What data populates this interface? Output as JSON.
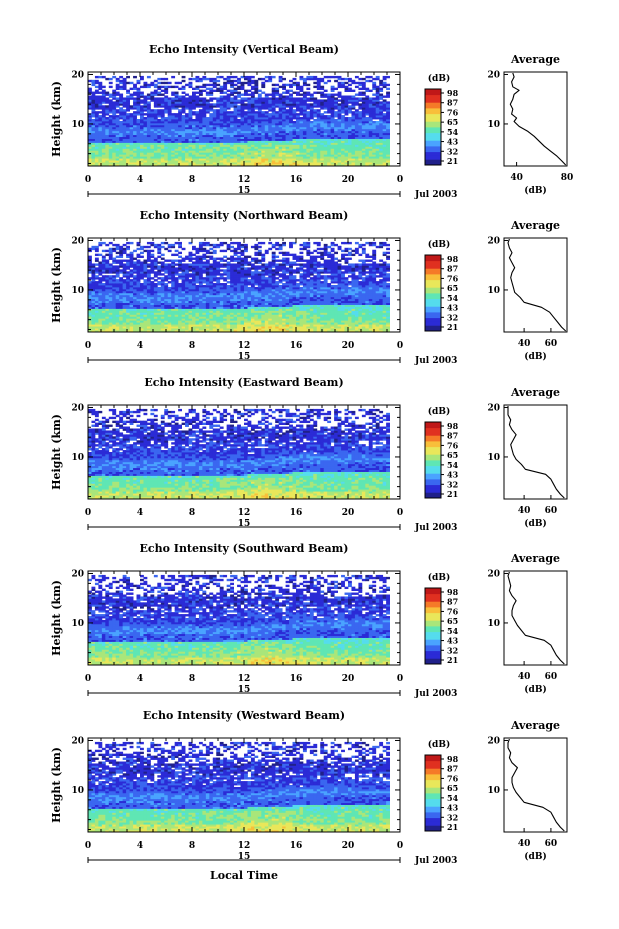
{
  "chart_data": [
    {
      "type": "heatmap",
      "title": "Echo Intensity (Vertical Beam)",
      "ylabel": "Height (km)",
      "x_ticks": [
        "0",
        "4",
        "8",
        "12",
        "16",
        "20",
        "0"
      ],
      "y_ticks": [
        "20",
        "10"
      ],
      "xlim": [
        0,
        24
      ],
      "ylim": [
        1.5,
        20.5
      ],
      "date_marker": "15",
      "date_label": "Jul 2003",
      "colorbar": {
        "label": "(dB)",
        "ticks": [
          "98",
          "87",
          "76",
          "65",
          "54",
          "43",
          "32",
          "21"
        ],
        "range": [
          21,
          98
        ]
      },
      "average": {
        "title": "Average",
        "xlabel": "(dB)",
        "x_ticks": [
          "40",
          "80"
        ],
        "xlim": [
          30,
          80
        ],
        "y_ticks": [
          "20",
          "10"
        ],
        "profile": [
          [
            1.7,
            79
          ],
          [
            2.5,
            76
          ],
          [
            3.5,
            72
          ],
          [
            4.5,
            67
          ],
          [
            5.5,
            62
          ],
          [
            6.5,
            58
          ],
          [
            7.5,
            54
          ],
          [
            8.5,
            49
          ],
          [
            9.5,
            42
          ],
          [
            10.5,
            38
          ],
          [
            11.2,
            40
          ],
          [
            12.0,
            36
          ],
          [
            13.0,
            37
          ],
          [
            14.0,
            35
          ],
          [
            15.0,
            37
          ],
          [
            16.0,
            38
          ],
          [
            16.8,
            42
          ],
          [
            17.5,
            37
          ],
          [
            18.5,
            36
          ],
          [
            19.5,
            38
          ],
          [
            20.3,
            37
          ]
        ]
      }
    },
    {
      "type": "heatmap",
      "title": "Echo Intensity (Northward Beam)",
      "ylabel": "Height (km)",
      "x_ticks": [
        "0",
        "4",
        "8",
        "12",
        "16",
        "20",
        "0"
      ],
      "y_ticks": [
        "20",
        "10"
      ],
      "xlim": [
        0,
        24
      ],
      "ylim": [
        1.5,
        20.5
      ],
      "date_marker": "15",
      "date_label": "Jul 2003",
      "colorbar": {
        "label": "(dB)",
        "ticks": [
          "98",
          "87",
          "76",
          "65",
          "54",
          "43",
          "32",
          "21"
        ],
        "range": [
          21,
          98
        ]
      },
      "average": {
        "title": "Average",
        "xlabel": "(dB)",
        "x_ticks": [
          "40",
          "60"
        ],
        "xlim": [
          25,
          72
        ],
        "y_ticks": [
          "20",
          "10"
        ],
        "profile": [
          [
            1.7,
            71
          ],
          [
            2.5,
            68
          ],
          [
            3.5,
            65
          ],
          [
            4.5,
            62
          ],
          [
            5.5,
            59
          ],
          [
            6.5,
            53
          ],
          [
            7.5,
            40
          ],
          [
            8.5,
            37
          ],
          [
            9.5,
            33
          ],
          [
            10.5,
            32
          ],
          [
            11.5,
            31
          ],
          [
            12.5,
            30
          ],
          [
            13.5,
            31
          ],
          [
            14.5,
            33
          ],
          [
            15.5,
            31
          ],
          [
            16.5,
            29
          ],
          [
            17.5,
            31
          ],
          [
            18.5,
            29
          ],
          [
            19.5,
            28
          ],
          [
            20.3,
            29
          ]
        ]
      }
    },
    {
      "type": "heatmap",
      "title": "Echo Intensity (Eastward Beam)",
      "ylabel": "Height (km)",
      "x_ticks": [
        "0",
        "4",
        "8",
        "12",
        "16",
        "20",
        "0"
      ],
      "y_ticks": [
        "20",
        "10"
      ],
      "xlim": [
        0,
        24
      ],
      "ylim": [
        1.5,
        20.5
      ],
      "date_marker": "15",
      "date_label": "Jul 2003",
      "colorbar": {
        "label": "(dB)",
        "ticks": [
          "98",
          "87",
          "76",
          "65",
          "54",
          "43",
          "32",
          "21"
        ],
        "range": [
          21,
          98
        ]
      },
      "average": {
        "title": "Average",
        "xlabel": "(dB)",
        "x_ticks": [
          "40",
          "60"
        ],
        "xlim": [
          25,
          72
        ],
        "y_ticks": [
          "20",
          "10"
        ],
        "profile": [
          [
            1.7,
            70
          ],
          [
            2.5,
            67
          ],
          [
            3.5,
            64
          ],
          [
            4.5,
            62
          ],
          [
            5.5,
            60
          ],
          [
            6.5,
            56
          ],
          [
            7.5,
            41
          ],
          [
            8.5,
            38
          ],
          [
            9.5,
            34
          ],
          [
            10.5,
            32
          ],
          [
            11.5,
            31
          ],
          [
            12.5,
            30
          ],
          [
            13.5,
            32
          ],
          [
            14.5,
            34
          ],
          [
            15.5,
            31
          ],
          [
            16.5,
            29
          ],
          [
            17.5,
            30
          ],
          [
            18.5,
            28
          ],
          [
            19.5,
            28
          ],
          [
            20.3,
            28
          ]
        ]
      }
    },
    {
      "type": "heatmap",
      "title": "Echo Intensity (Southward Beam)",
      "ylabel": "Height (km)",
      "x_ticks": [
        "0",
        "4",
        "8",
        "12",
        "16",
        "20",
        "0"
      ],
      "y_ticks": [
        "20",
        "10"
      ],
      "xlim": [
        0,
        24
      ],
      "ylim": [
        1.5,
        20.5
      ],
      "date_marker": "15",
      "date_label": "Jul 2003",
      "colorbar": {
        "label": "(dB)",
        "ticks": [
          "98",
          "87",
          "76",
          "65",
          "54",
          "43",
          "32",
          "21"
        ],
        "range": [
          21,
          98
        ]
      },
      "average": {
        "title": "Average",
        "xlabel": "(dB)",
        "x_ticks": [
          "40",
          "60"
        ],
        "xlim": [
          25,
          72
        ],
        "y_ticks": [
          "20",
          "10"
        ],
        "profile": [
          [
            1.7,
            70
          ],
          [
            2.5,
            67
          ],
          [
            3.5,
            64
          ],
          [
            4.5,
            62
          ],
          [
            5.5,
            60
          ],
          [
            6.5,
            55
          ],
          [
            7.5,
            41
          ],
          [
            8.5,
            38
          ],
          [
            9.5,
            35
          ],
          [
            10.5,
            33
          ],
          [
            11.5,
            31
          ],
          [
            12.5,
            31
          ],
          [
            13.5,
            32
          ],
          [
            14.5,
            34
          ],
          [
            15.5,
            31
          ],
          [
            16.5,
            29
          ],
          [
            17.5,
            30
          ],
          [
            18.5,
            29
          ],
          [
            19.5,
            28
          ],
          [
            20.3,
            29
          ]
        ]
      }
    },
    {
      "type": "heatmap",
      "title": "Echo Intensity (Westward Beam)",
      "ylabel": "Height (km)",
      "xlabel": "Local Time",
      "x_ticks": [
        "0",
        "4",
        "8",
        "12",
        "16",
        "20",
        "0"
      ],
      "y_ticks": [
        "20",
        "10"
      ],
      "xlim": [
        0,
        24
      ],
      "ylim": [
        1.5,
        20.5
      ],
      "date_marker": "15",
      "date_label": "Jul 2003",
      "colorbar": {
        "label": "(dB)",
        "ticks": [
          "98",
          "87",
          "76",
          "65",
          "54",
          "43",
          "32",
          "21"
        ],
        "range": [
          21,
          98
        ]
      },
      "average": {
        "title": "Average",
        "xlabel": "(dB)",
        "x_ticks": [
          "40",
          "60"
        ],
        "xlim": [
          25,
          72
        ],
        "y_ticks": [
          "20",
          "10"
        ],
        "profile": [
          [
            1.7,
            70
          ],
          [
            2.5,
            67
          ],
          [
            3.5,
            64
          ],
          [
            4.5,
            62
          ],
          [
            5.5,
            60
          ],
          [
            6.5,
            54
          ],
          [
            7.5,
            40
          ],
          [
            8.5,
            37
          ],
          [
            9.5,
            34
          ],
          [
            10.5,
            32
          ],
          [
            11.5,
            31
          ],
          [
            12.5,
            31
          ],
          [
            13.5,
            33
          ],
          [
            14.5,
            35
          ],
          [
            15.5,
            31
          ],
          [
            16.5,
            29
          ],
          [
            17.5,
            30
          ],
          [
            18.5,
            28
          ],
          [
            19.5,
            28
          ],
          [
            20.3,
            29
          ]
        ]
      }
    }
  ]
}
